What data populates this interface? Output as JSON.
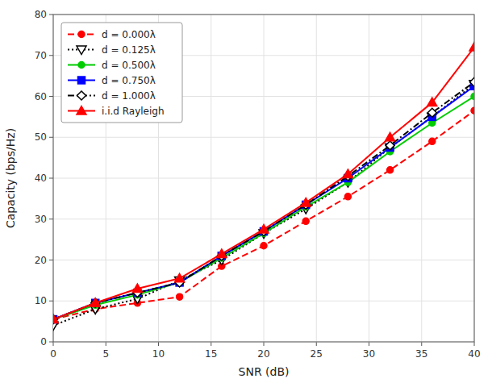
{
  "chart_data": {
    "type": "line",
    "x": [
      0,
      4,
      8,
      12,
      16,
      20,
      24,
      28,
      32,
      36,
      40
    ],
    "series": [
      {
        "name": "d = 0.000λ",
        "color": "#FF0000",
        "line_style": "dashed",
        "marker": "circle",
        "values": [
          5.5,
          8.0,
          9.5,
          11.0,
          18.5,
          23.5,
          29.5,
          35.5,
          42.0,
          49.0,
          56.5
        ]
      },
      {
        "name": "d = 0.125λ",
        "color": "#000000",
        "line_style": "dotted",
        "marker": "open-triangle-down",
        "values": [
          4.0,
          8.0,
          10.5,
          15.0,
          20.0,
          26.5,
          32.5,
          39.0,
          47.5,
          55.0,
          63.0
        ]
      },
      {
        "name": "d = 0.500λ",
        "color": "#00CC00",
        "line_style": "solid",
        "marker": "circle",
        "values": [
          5.5,
          9.0,
          11.5,
          14.5,
          20.5,
          26.5,
          33.0,
          39.0,
          46.5,
          53.5,
          60.0
        ]
      },
      {
        "name": "d = 0.750λ",
        "color": "#0000FF",
        "line_style": "solid",
        "marker": "square",
        "values": [
          5.5,
          9.5,
          12.0,
          14.5,
          21.0,
          27.0,
          33.5,
          40.0,
          47.5,
          55.0,
          62.5
        ]
      },
      {
        "name": "d = 1.000λ",
        "color": "#000000",
        "line_style": "dashdot",
        "marker": "open-diamond",
        "values": [
          5.5,
          9.5,
          12.0,
          14.5,
          21.0,
          27.0,
          33.5,
          40.5,
          48.0,
          56.0,
          63.5
        ]
      },
      {
        "name": "i.i.d Rayleigh",
        "color": "#FF0000",
        "line_style": "solid",
        "marker": "triangle-up",
        "values": [
          5.5,
          9.5,
          13.0,
          15.5,
          21.5,
          27.5,
          34.0,
          41.0,
          50.0,
          58.5,
          72.0
        ]
      }
    ],
    "xlabel": "SNR (dB)",
    "ylabel": "Capacity (bps/Hz)",
    "xlim": [
      0,
      40
    ],
    "ylim": [
      0,
      80
    ],
    "xticks": [
      0,
      5,
      10,
      15,
      20,
      25,
      30,
      35,
      40
    ],
    "yticks": [
      0,
      10,
      20,
      30,
      40,
      50,
      60,
      70,
      80
    ],
    "grid": true,
    "legend": "upper left"
  }
}
